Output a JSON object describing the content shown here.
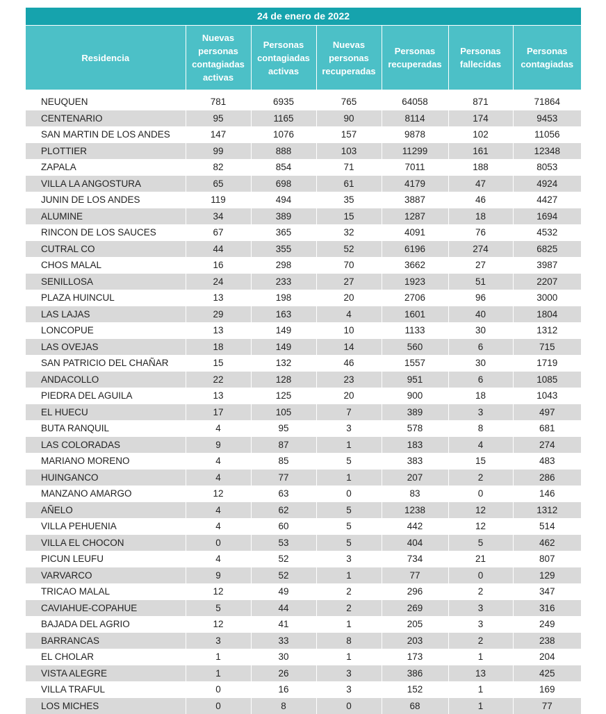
{
  "title": "24 de enero de 2022",
  "columns": [
    "Residencia",
    "Nuevas personas contagiadas activas",
    "Personas contagiadas activas",
    "Nuevas personas recuperadas",
    "Personas recuperadas",
    "Personas fallecidas",
    "Personas contagiadas"
  ],
  "rows": [
    [
      "NEUQUEN",
      "781",
      "6935",
      "765",
      "64058",
      "871",
      "71864"
    ],
    [
      "CENTENARIO",
      "95",
      "1165",
      "90",
      "8114",
      "174",
      "9453"
    ],
    [
      "SAN MARTIN DE LOS ANDES",
      "147",
      "1076",
      "157",
      "9878",
      "102",
      "11056"
    ],
    [
      "PLOTTIER",
      "99",
      "888",
      "103",
      "11299",
      "161",
      "12348"
    ],
    [
      "ZAPALA",
      "82",
      "854",
      "71",
      "7011",
      "188",
      "8053"
    ],
    [
      "VILLA LA ANGOSTURA",
      "65",
      "698",
      "61",
      "4179",
      "47",
      "4924"
    ],
    [
      "JUNIN DE LOS ANDES",
      "119",
      "494",
      "35",
      "3887",
      "46",
      "4427"
    ],
    [
      "ALUMINE",
      "34",
      "389",
      "15",
      "1287",
      "18",
      "1694"
    ],
    [
      "RINCON DE LOS SAUCES",
      "67",
      "365",
      "32",
      "4091",
      "76",
      "4532"
    ],
    [
      "CUTRAL CO",
      "44",
      "355",
      "52",
      "6196",
      "274",
      "6825"
    ],
    [
      "CHOS MALAL",
      "16",
      "298",
      "70",
      "3662",
      "27",
      "3987"
    ],
    [
      "SENILLOSA",
      "24",
      "233",
      "27",
      "1923",
      "51",
      "2207"
    ],
    [
      "PLAZA HUINCUL",
      "13",
      "198",
      "20",
      "2706",
      "96",
      "3000"
    ],
    [
      "LAS LAJAS",
      "29",
      "163",
      "4",
      "1601",
      "40",
      "1804"
    ],
    [
      "LONCOPUE",
      "13",
      "149",
      "10",
      "1133",
      "30",
      "1312"
    ],
    [
      "LAS OVEJAS",
      "18",
      "149",
      "14",
      "560",
      "6",
      "715"
    ],
    [
      "SAN PATRICIO DEL CHAÑAR",
      "15",
      "132",
      "46",
      "1557",
      "30",
      "1719"
    ],
    [
      "ANDACOLLO",
      "22",
      "128",
      "23",
      "951",
      "6",
      "1085"
    ],
    [
      "PIEDRA DEL AGUILA",
      "13",
      "125",
      "20",
      "900",
      "18",
      "1043"
    ],
    [
      "EL HUECU",
      "17",
      "105",
      "7",
      "389",
      "3",
      "497"
    ],
    [
      "BUTA RANQUIL",
      "4",
      "95",
      "3",
      "578",
      "8",
      "681"
    ],
    [
      "LAS COLORADAS",
      "9",
      "87",
      "1",
      "183",
      "4",
      "274"
    ],
    [
      "MARIANO MORENO",
      "4",
      "85",
      "5",
      "383",
      "15",
      "483"
    ],
    [
      "HUINGANCO",
      "4",
      "77",
      "1",
      "207",
      "2",
      "286"
    ],
    [
      "MANZANO AMARGO",
      "12",
      "63",
      "0",
      "83",
      "0",
      "146"
    ],
    [
      "AÑELO",
      "4",
      "62",
      "5",
      "1238",
      "12",
      "1312"
    ],
    [
      "VILLA PEHUENIA",
      "4",
      "60",
      "5",
      "442",
      "12",
      "514"
    ],
    [
      "VILLA EL CHOCON",
      "0",
      "53",
      "5",
      "404",
      "5",
      "462"
    ],
    [
      "PICUN LEUFU",
      "4",
      "52",
      "3",
      "734",
      "21",
      "807"
    ],
    [
      "VARVARCO",
      "9",
      "52",
      "1",
      "77",
      "0",
      "129"
    ],
    [
      "TRICAO MALAL",
      "12",
      "49",
      "2",
      "296",
      "2",
      "347"
    ],
    [
      "CAVIAHUE-COPAHUE",
      "5",
      "44",
      "2",
      "269",
      "3",
      "316"
    ],
    [
      "BAJADA DEL AGRIO",
      "12",
      "41",
      "1",
      "205",
      "3",
      "249"
    ],
    [
      "BARRANCAS",
      "3",
      "33",
      "8",
      "203",
      "2",
      "238"
    ],
    [
      "EL CHOLAR",
      "1",
      "30",
      "1",
      "173",
      "1",
      "204"
    ],
    [
      "VISTA ALEGRE",
      "1",
      "26",
      "3",
      "386",
      "13",
      "425"
    ],
    [
      "VILLA TRAFUL",
      "0",
      "16",
      "3",
      "152",
      "1",
      "169"
    ],
    [
      "LOS MICHES",
      "0",
      "8",
      "0",
      "68",
      "1",
      "77"
    ]
  ],
  "colors": {
    "title_bg": "#16a3ad",
    "header_bg": "#4cc0c7",
    "stripe": "#d9d9d9"
  }
}
